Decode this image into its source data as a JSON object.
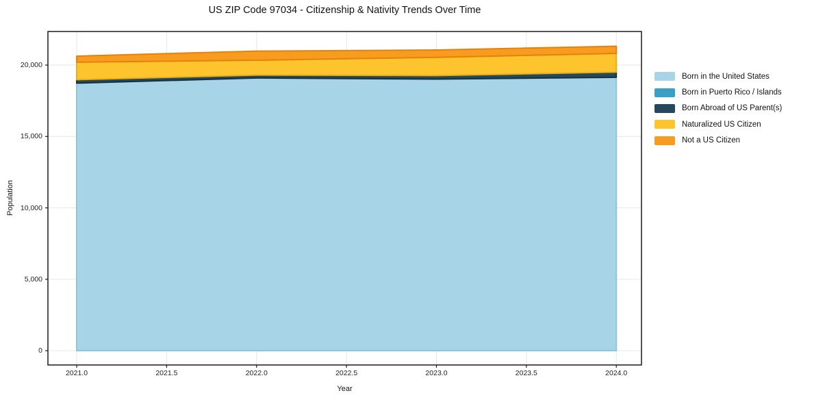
{
  "title": "US ZIP Code 97034 - Citizenship & Nativity Trends Over Time",
  "colors": {
    "background": "#ffffff",
    "grid": "#e6e6e6",
    "spine": "#1a1a1a",
    "text": "#111111"
  },
  "chart_data": {
    "type": "area",
    "stacked": true,
    "title": "US ZIP Code 97034 - Citizenship & Nativity Trends Over Time",
    "xlabel": "Year",
    "ylabel": "Population",
    "x": [
      2021,
      2022,
      2023,
      2024
    ],
    "series": [
      {
        "name": "Born in the United States",
        "color": "#A8D4E8",
        "edge_color": "#8FC4DE",
        "values": [
          18720,
          19080,
          19000,
          19130
        ]
      },
      {
        "name": "Born in Puerto Rico / Islands",
        "color": "#3AA0C4",
        "edge_color": "#2E87A8",
        "values": [
          15,
          15,
          15,
          15
        ]
      },
      {
        "name": "Born Abroad of US Parent(s)",
        "color": "#25485C",
        "edge_color": "#16303E",
        "values": [
          240,
          205,
          250,
          360
        ]
      },
      {
        "name": "Naturalized US Citizen",
        "color": "#FDC42D",
        "edge_color": "#EBAE14",
        "values": [
          1230,
          1040,
          1275,
          1310
        ]
      },
      {
        "name": "Not a US Citizen",
        "color": "#F79C1E",
        "edge_color": "#E5820E",
        "values": [
          420,
          635,
          515,
          505
        ]
      }
    ],
    "xlim": [
      2020.84,
      2024.14
    ],
    "ylim": [
      -1000,
      22350
    ],
    "x_ticks": [
      2021.0,
      2021.5,
      2022.0,
      2022.5,
      2023.0,
      2023.5,
      2024.0
    ],
    "x_tick_labels": [
      "2021.0",
      "2021.5",
      "2022.0",
      "2022.5",
      "2023.0",
      "2023.5",
      "2024.0"
    ],
    "y_ticks": [
      0,
      5000,
      10000,
      15000,
      20000
    ],
    "y_tick_labels": [
      "0",
      "5,000",
      "10,000",
      "15,000",
      "20,000"
    ],
    "grid": true,
    "legend_position": "right-outside"
  }
}
